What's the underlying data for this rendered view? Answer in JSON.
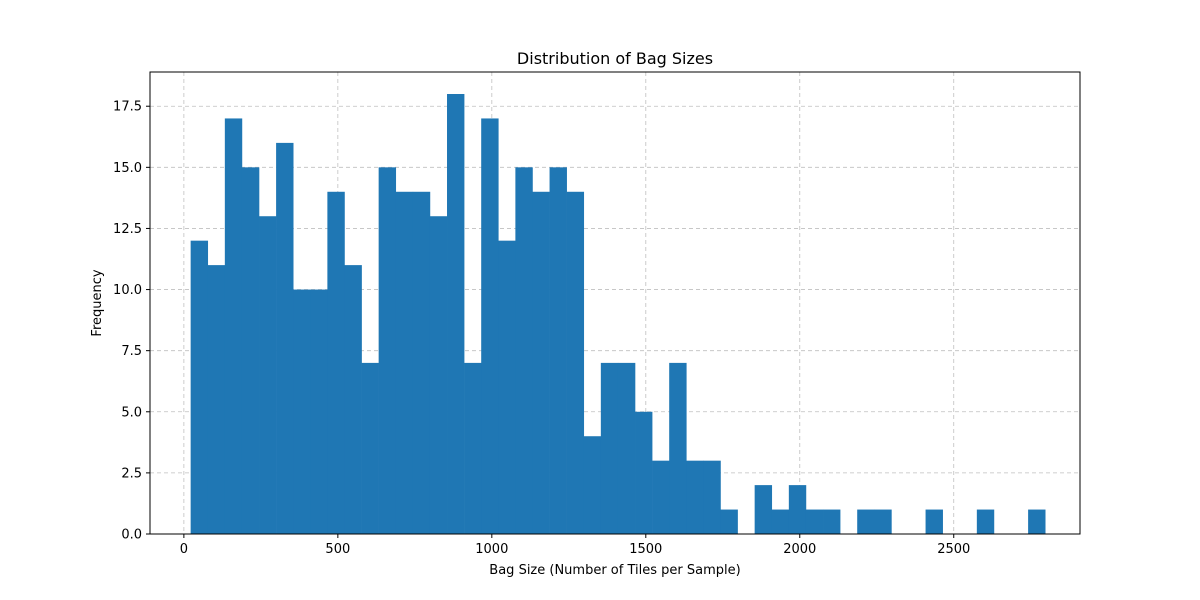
{
  "chart_data": {
    "type": "bar",
    "title": "Distribution of Bag Sizes",
    "xlabel": "Bag Size (Number of Tiles per Sample)",
    "ylabel": "Frequency",
    "xlim": [
      -110,
      2910
    ],
    "ylim": [
      0,
      18.9
    ],
    "xticks": [
      0,
      500,
      1000,
      1500,
      2000,
      2500
    ],
    "yticks": [
      0.0,
      2.5,
      5.0,
      7.5,
      10.0,
      12.5,
      15.0,
      17.5
    ],
    "bin_start": 22,
    "bin_width": 55.5,
    "values": [
      12,
      11,
      17,
      15,
      13,
      16,
      10,
      10,
      14,
      11,
      7,
      15,
      14,
      14,
      13,
      18,
      7,
      17,
      12,
      15,
      14,
      15,
      14,
      4,
      7,
      7,
      5,
      3,
      7,
      3,
      3,
      1,
      0,
      2,
      1,
      2,
      1,
      1,
      0,
      1,
      1,
      0,
      0,
      1,
      0,
      0,
      1,
      0,
      0,
      1
    ],
    "grid": true,
    "color": "#1f77b4"
  }
}
